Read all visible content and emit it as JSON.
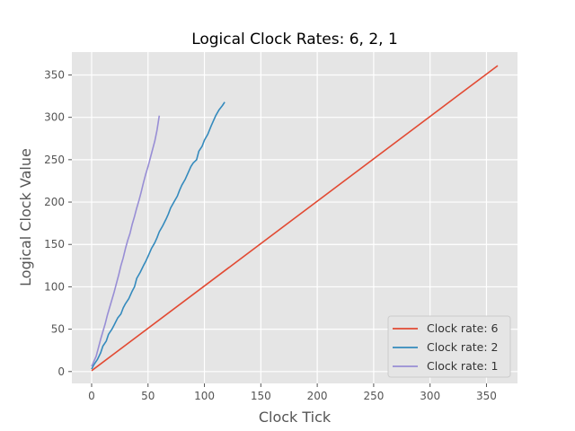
{
  "chart_data": {
    "type": "line",
    "title": "Logical Clock Rates: 6, 2, 1",
    "xlabel": "Clock Tick",
    "ylabel": "Logical Clock Value",
    "xlim": [
      -17.5,
      377.5
    ],
    "ylim": [
      -14,
      377
    ],
    "xticks": [
      0,
      50,
      100,
      150,
      200,
      250,
      300,
      350
    ],
    "yticks": [
      0,
      50,
      100,
      150,
      200,
      250,
      300,
      350
    ],
    "grid": true,
    "legend_position": "lower-right",
    "series": [
      {
        "name": "Clock rate: 6",
        "color": "#E24A33",
        "points": [
          [
            0,
            1
          ],
          [
            360,
            361
          ]
        ]
      },
      {
        "name": "Clock rate: 2",
        "color": "#348ABD",
        "points": [
          [
            0,
            3
          ],
          [
            2,
            8
          ],
          [
            5,
            14
          ],
          [
            8,
            22
          ],
          [
            10,
            30
          ],
          [
            13,
            36
          ],
          [
            15,
            44
          ],
          [
            18,
            50
          ],
          [
            20,
            55
          ],
          [
            23,
            63
          ],
          [
            26,
            68
          ],
          [
            28,
            75
          ],
          [
            30,
            80
          ],
          [
            33,
            86
          ],
          [
            36,
            95
          ],
          [
            38,
            100
          ],
          [
            40,
            110
          ],
          [
            43,
            117
          ],
          [
            46,
            125
          ],
          [
            48,
            130
          ],
          [
            50,
            136
          ],
          [
            53,
            145
          ],
          [
            56,
            152
          ],
          [
            58,
            158
          ],
          [
            60,
            165
          ],
          [
            63,
            172
          ],
          [
            66,
            180
          ],
          [
            68,
            186
          ],
          [
            70,
            193
          ],
          [
            73,
            200
          ],
          [
            76,
            207
          ],
          [
            78,
            214
          ],
          [
            80,
            220
          ],
          [
            83,
            227
          ],
          [
            86,
            236
          ],
          [
            88,
            242
          ],
          [
            90,
            246
          ],
          [
            93,
            250
          ],
          [
            95,
            260
          ],
          [
            98,
            266
          ],
          [
            100,
            273
          ],
          [
            103,
            280
          ],
          [
            106,
            290
          ],
          [
            108,
            296
          ],
          [
            110,
            302
          ],
          [
            113,
            309
          ],
          [
            116,
            314
          ],
          [
            118,
            318
          ]
        ]
      },
      {
        "name": "Clock rate: 1",
        "color": "#988ED5",
        "points": [
          [
            0,
            6
          ],
          [
            2,
            12
          ],
          [
            4,
            18
          ],
          [
            6,
            28
          ],
          [
            8,
            38
          ],
          [
            10,
            47
          ],
          [
            12,
            56
          ],
          [
            14,
            67
          ],
          [
            16,
            76
          ],
          [
            18,
            85
          ],
          [
            20,
            94
          ],
          [
            22,
            104
          ],
          [
            24,
            114
          ],
          [
            26,
            125
          ],
          [
            28,
            134
          ],
          [
            30,
            145
          ],
          [
            32,
            155
          ],
          [
            34,
            163
          ],
          [
            36,
            174
          ],
          [
            38,
            183
          ],
          [
            40,
            193
          ],
          [
            42,
            202
          ],
          [
            44,
            212
          ],
          [
            46,
            223
          ],
          [
            48,
            233
          ],
          [
            50,
            242
          ],
          [
            52,
            252
          ],
          [
            54,
            262
          ],
          [
            56,
            272
          ],
          [
            58,
            285
          ],
          [
            60,
            302
          ]
        ]
      }
    ]
  }
}
